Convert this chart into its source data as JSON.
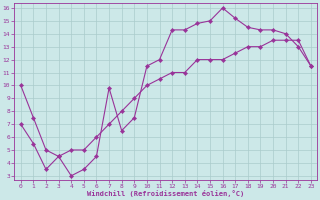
{
  "xlabel": "Windchill (Refroidissement éolien,°C)",
  "line1_x": [
    0,
    1,
    2,
    3,
    4,
    5,
    6,
    7,
    8,
    9,
    10,
    11,
    12,
    13,
    14,
    15,
    16,
    17,
    18,
    19,
    20,
    21,
    22,
    23
  ],
  "line1_y": [
    10,
    7.5,
    5,
    4.5,
    3,
    3.5,
    4.5,
    9.8,
    6.5,
    7.5,
    11.5,
    12,
    14.3,
    14.3,
    14.8,
    15.0,
    16.0,
    15.2,
    14.5,
    14.3,
    14.3,
    14.0,
    13.0,
    11.5
  ],
  "line2_x": [
    0,
    1,
    2,
    3,
    4,
    5,
    6,
    7,
    8,
    9,
    10,
    11,
    12,
    13,
    14,
    15,
    16,
    17,
    18,
    19,
    20,
    21,
    22,
    23
  ],
  "line2_y": [
    7,
    5.5,
    3.5,
    4.5,
    5,
    5,
    6,
    7,
    8,
    9,
    10,
    10.5,
    11,
    11,
    12,
    12,
    12,
    12.5,
    13,
    13,
    13.5,
    13.5,
    13.5,
    11.5
  ],
  "line_color": "#993399",
  "marker": "D",
  "marker_size": 2.2,
  "bg_color": "#cce8e8",
  "grid_color": "#aacccc",
  "xlim": [
    -0.5,
    23.5
  ],
  "ylim": [
    2.7,
    16.4
  ],
  "xticks": [
    0,
    1,
    2,
    3,
    4,
    5,
    6,
    7,
    8,
    9,
    10,
    11,
    12,
    13,
    14,
    15,
    16,
    17,
    18,
    19,
    20,
    21,
    22,
    23
  ],
  "yticks": [
    3,
    4,
    5,
    6,
    7,
    8,
    9,
    10,
    11,
    12,
    13,
    14,
    15,
    16
  ],
  "tick_fontsize": 4.5,
  "xlabel_fontsize": 5.0
}
